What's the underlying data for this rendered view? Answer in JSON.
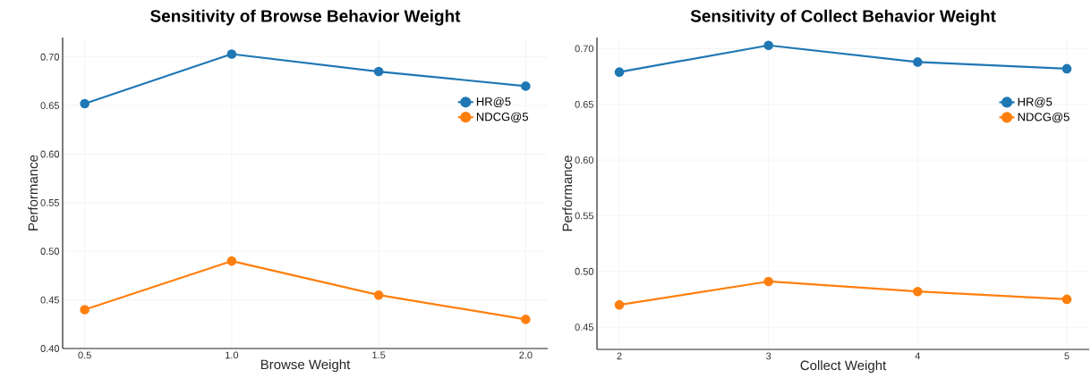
{
  "chart_data": [
    {
      "type": "line",
      "title": "Sensitivity of Browse Behavior Weight",
      "xlabel": "Browse Weight",
      "ylabel": "Performance",
      "x": [
        0.5,
        1.0,
        1.5,
        2.0
      ],
      "series": [
        {
          "name": "HR@5",
          "color": "#1f77b4",
          "values": [
            0.652,
            0.703,
            0.685,
            0.67
          ]
        },
        {
          "name": "NDCG@5",
          "color": "#ff7f0e",
          "values": [
            0.44,
            0.49,
            0.455,
            0.43
          ]
        }
      ],
      "xlim": [
        0.425,
        2.075
      ],
      "ylim": [
        0.4,
        0.72
      ],
      "xticks": [
        {
          "value": 0.5,
          "label": "0.5"
        },
        {
          "value": 1.0,
          "label": "1.0"
        },
        {
          "value": 1.5,
          "label": "1.5"
        },
        {
          "value": 2.0,
          "label": "2.0"
        }
      ],
      "yticks": [
        {
          "value": 0.4,
          "label": "0.40"
        },
        {
          "value": 0.45,
          "label": "0.45"
        },
        {
          "value": 0.5,
          "label": "0.50"
        },
        {
          "value": 0.55,
          "label": "0.55"
        },
        {
          "value": 0.6,
          "label": "0.60"
        },
        {
          "value": 0.65,
          "label": "0.65"
        },
        {
          "value": 0.7,
          "label": "0.70"
        }
      ],
      "grid": true,
      "legend": "top right",
      "marker": "circle",
      "line_style": "solid"
    },
    {
      "type": "line",
      "title": "Sensitivity of Collect Behavior Weight",
      "xlabel": "Collect Weight",
      "ylabel": "Performance",
      "x": [
        2,
        3,
        4,
        5
      ],
      "series": [
        {
          "name": "HR@5",
          "color": "#1f77b4",
          "values": [
            0.679,
            0.703,
            0.688,
            0.682
          ]
        },
        {
          "name": "NDCG@5",
          "color": "#ff7f0e",
          "values": [
            0.47,
            0.491,
            0.482,
            0.475
          ]
        }
      ],
      "xlim": [
        1.85,
        5.15
      ],
      "ylim": [
        0.43,
        0.71
      ],
      "xticks": [
        2,
        3,
        4,
        5
      ],
      "yticks": [
        {
          "value": 0.45,
          "label": "0.45"
        },
        {
          "value": 0.5,
          "label": "0.50"
        },
        {
          "value": 0.55,
          "label": "0.55"
        },
        {
          "value": 0.6,
          "label": "0.60"
        },
        {
          "value": 0.65,
          "label": "0.65"
        },
        {
          "value": 0.7,
          "label": "0.70"
        }
      ],
      "grid": true,
      "legend": "top right",
      "marker": "circle",
      "line_style": "solid"
    }
  ]
}
